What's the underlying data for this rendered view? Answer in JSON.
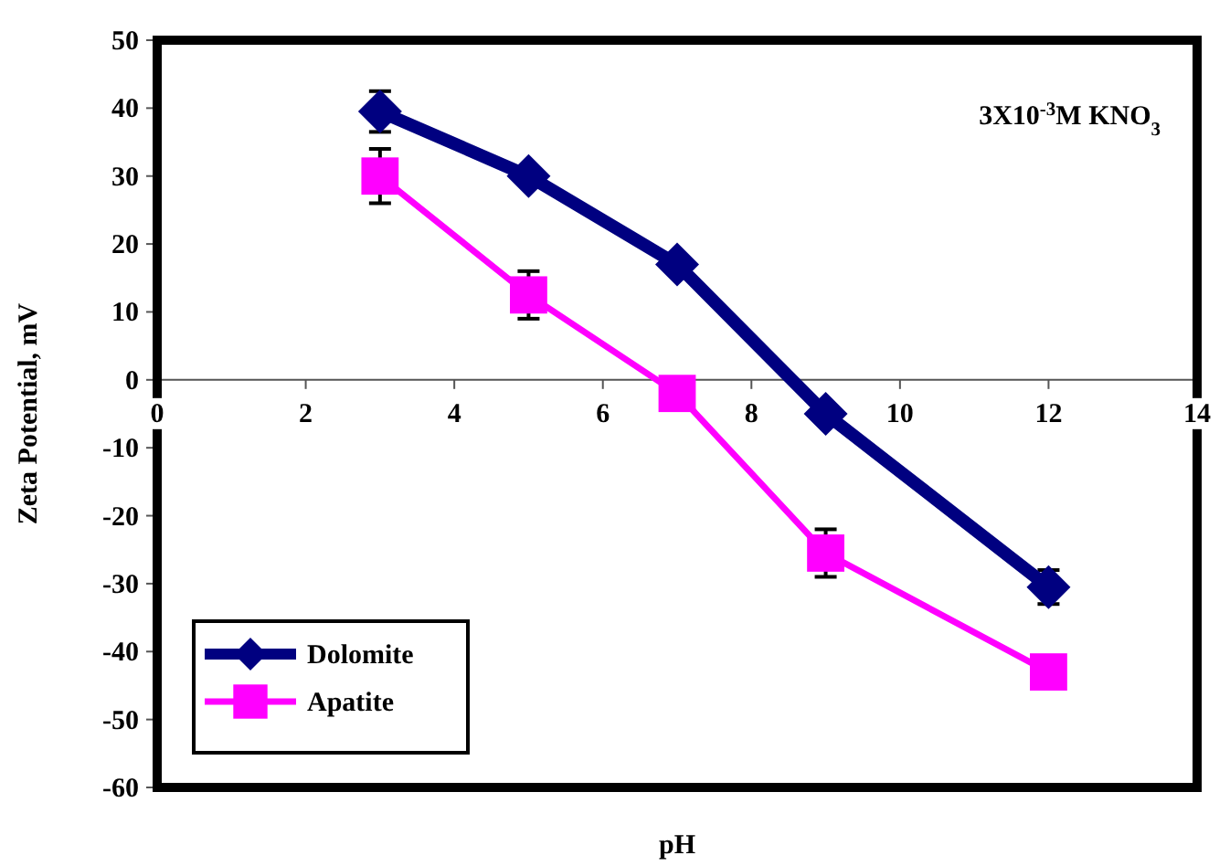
{
  "chart_data": {
    "type": "line",
    "xlabel": "pH",
    "ylabel": "Zeta Potential, mV",
    "annotations": [
      "3X10$^{-3}$M KNO$_{3}$"
    ],
    "xlim": [
      0,
      14
    ],
    "xticks": [
      0,
      2,
      4,
      6,
      8,
      10,
      12,
      14
    ],
    "ylim": [
      -60,
      50
    ],
    "yticks": [
      -60,
      -50,
      -40,
      -30,
      -20,
      -10,
      0,
      10,
      20,
      30,
      40,
      50
    ],
    "grid": false,
    "legend": "bottom left",
    "line_style": "solid",
    "series": [
      {
        "name": "Dolomite",
        "color": "#000080",
        "marker": "diamond",
        "x": [
          3,
          5,
          7,
          9,
          12
        ],
        "values": [
          39.5,
          30,
          17,
          -5,
          -30.5
        ],
        "errors": [
          3,
          null,
          null,
          null,
          2.5
        ]
      },
      {
        "name": "Apatite",
        "color": "#ff00ff",
        "marker": "square",
        "x": [
          3,
          5,
          7,
          9,
          12
        ],
        "values": [
          30,
          12.5,
          -2,
          -25.5,
          -43
        ],
        "errors": [
          4,
          3.5,
          null,
          3.5,
          null
        ]
      }
    ]
  }
}
